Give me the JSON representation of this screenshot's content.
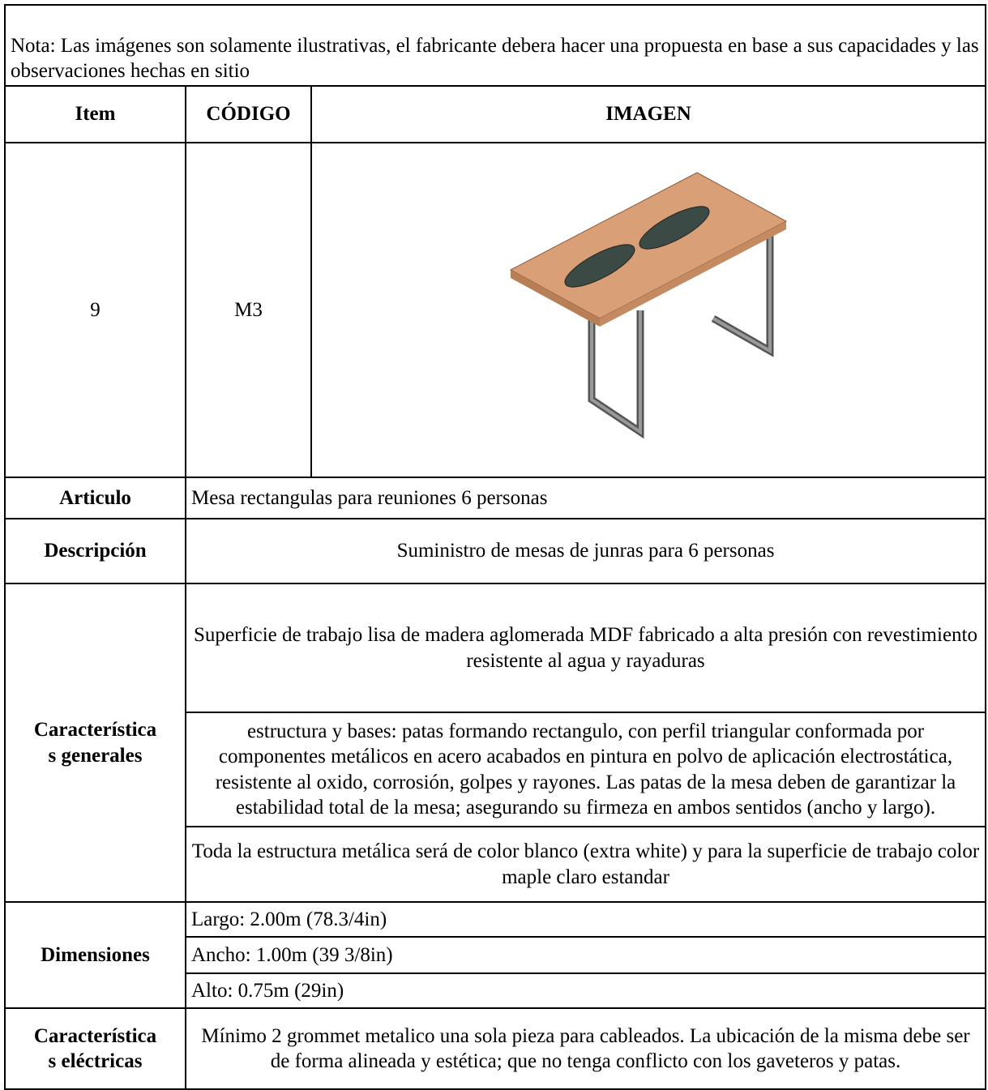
{
  "note": "Nota: Las imágenes son solamente ilustrativas, el fabricante debera hacer una propuesta en base a sus capacidades y las observaciones hechas en sitio",
  "header": {
    "item": "Item",
    "code": "CÓDIGO",
    "image": "IMAGEN"
  },
  "product": {
    "item": "9",
    "code": "M3"
  },
  "article": {
    "label": "Articulo",
    "text": "Mesa rectangulas para reuniones 6 personas"
  },
  "description": {
    "label": "Descripción",
    "text": "Suministro de mesas de junras para 6 personas"
  },
  "general": {
    "label": [
      "Característica",
      "s generales"
    ],
    "items": [
      "Superficie de trabajo lisa de madera aglomerada MDF fabricado a alta presión con revestimiento resistente al agua y rayaduras",
      "estructura y bases: patas formando rectangulo, con perfil triangular conformada por componentes metálicos en acero acabados en pintura en polvo de aplicación electrostática, resistente al oxido, corrosión, golpes y rayones. Las patas de la mesa deben de garantizar la estabilidad total de la mesa; asegurando su firmeza en ambos sentidos (ancho y largo).",
      "Toda la estructura metálica será de color blanco (extra white) y para la superficie de trabajo color maple claro estandar"
    ]
  },
  "dimensions": {
    "label": "Dimensiones",
    "items": [
      "Largo: 2.00m (78.3/4in)",
      "Ancho: 1.00m (39 3/8in)",
      "Alto: 0.75m (29in)"
    ]
  },
  "electrical": {
    "label": [
      "Característica",
      "s eléctricas"
    ],
    "text": "Mínimo 2 grommet metalico una sola pieza para cableados. La ubicación de la misma debe ser de forma alineada y estética; que no tenga conflicto con los gaveteros y patas."
  }
}
